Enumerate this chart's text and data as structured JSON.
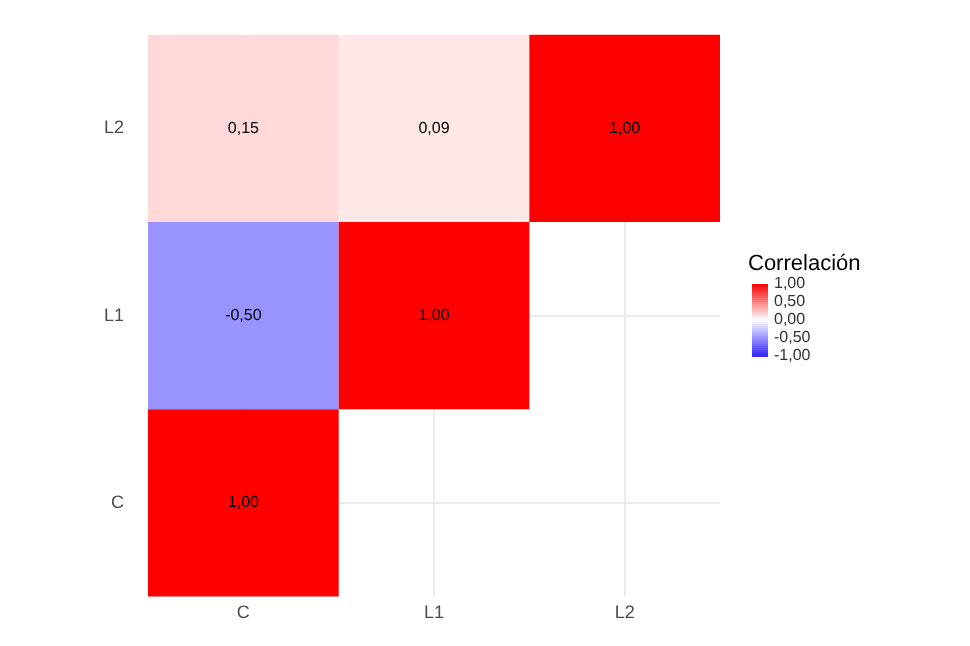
{
  "chart_data": {
    "type": "heatmap",
    "clabel": "Correlación",
    "categories": [
      "C",
      "L1",
      "L2"
    ],
    "y_categories": [
      "L2",
      "L1",
      "C"
    ],
    "cells": [
      [
        0.15,
        0.09,
        1.0
      ],
      [
        -0.5,
        1.0,
        null
      ],
      [
        1.0,
        null,
        null
      ]
    ],
    "cell_labels": [
      [
        "0,15",
        "0,09",
        "1,00"
      ],
      [
        "-0,50",
        "1,00",
        null
      ],
      [
        "1,00",
        null,
        null
      ]
    ],
    "clim": [
      -1,
      1
    ],
    "cticks": [
      {
        "value": 1,
        "label": "1,00"
      },
      {
        "value": 0.5,
        "label": "0,50"
      },
      {
        "value": 0,
        "label": "0,00"
      },
      {
        "value": -0.5,
        "label": "-0,50"
      },
      {
        "value": -1,
        "label": "-1,00"
      }
    ],
    "grid": true
  }
}
